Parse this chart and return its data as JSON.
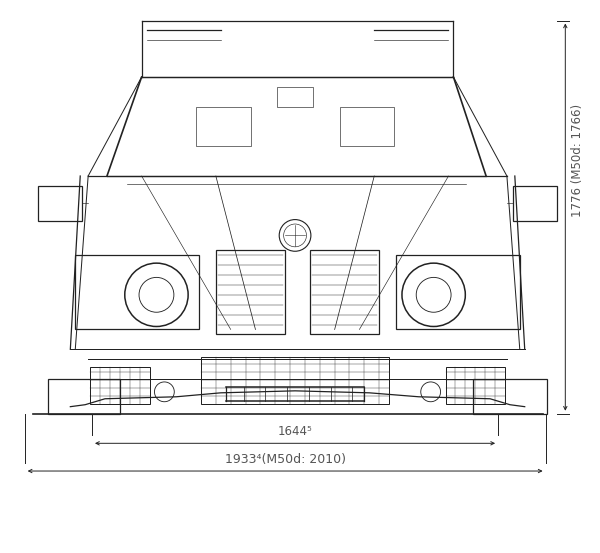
{
  "fig_width": 6.0,
  "fig_height": 5.53,
  "dpi": 100,
  "bg_color": "#ffffff",
  "car_color": "#222222",
  "dim_color": "#555555",
  "dim_width_label": "1644⁵",
  "dim_total_label": "1933⁴(M50d: 2010)",
  "dim_height_label": "1776 (M50d: 1766)",
  "font_size_dim": 8.5,
  "lw_car": 0.9,
  "lw_dim": 0.7,
  "lw_thin": 0.4
}
